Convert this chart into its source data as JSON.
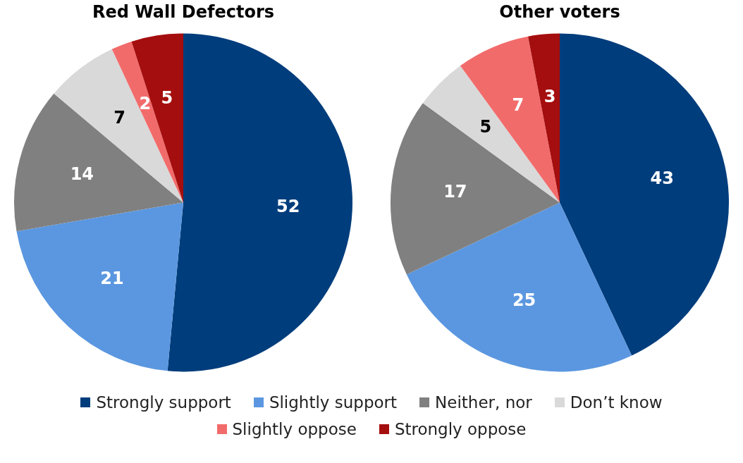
{
  "chart_data": [
    {
      "type": "pie",
      "title": "Red Wall Defectors",
      "categories": [
        "Strongly support",
        "Slightly support",
        "Neither, nor",
        "Don’t know",
        "Slightly oppose",
        "Strongly oppose"
      ],
      "values": [
        52,
        21,
        14,
        7,
        2,
        5
      ],
      "colors": [
        "#003d7c",
        "#5b97e0",
        "#808080",
        "#d9d9d9",
        "#f26b6b",
        "#a50e0e"
      ],
      "data_labels": true,
      "legend": "bottom"
    },
    {
      "type": "pie",
      "title": "Other voters",
      "categories": [
        null,
        null,
        null,
        null,
        null,
        null
      ],
      "values": [
        43,
        25,
        17,
        5,
        7,
        3
      ],
      "colors": [
        "#003d7c",
        "#5b97e0",
        "#808080",
        "#d9d9d9",
        "#f26b6b",
        "#a50e0e"
      ],
      "data_labels": true,
      "legend": false
    }
  ]
}
